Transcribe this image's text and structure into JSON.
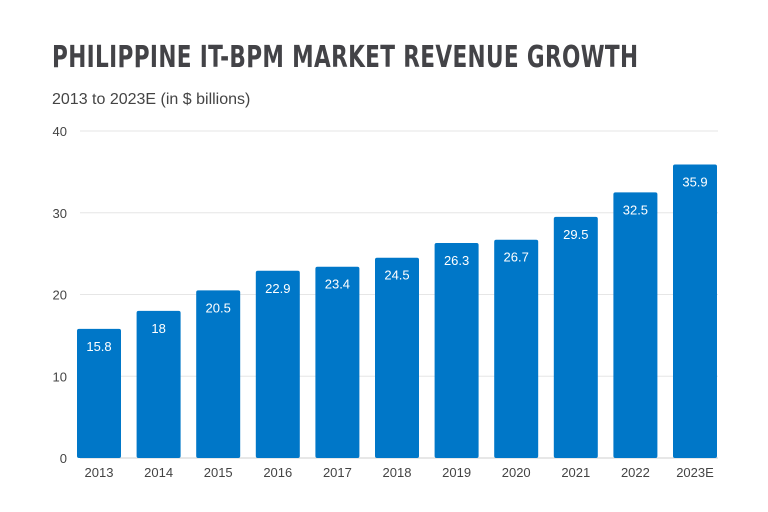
{
  "chart_data": {
    "type": "bar",
    "title": "PHILIPPINE IT-BPM MARKET REVENUE GROWTH",
    "subtitle": "2013 to 2023E (in $ billions)",
    "categories": [
      "2013",
      "2014",
      "2015",
      "2016",
      "2017",
      "2018",
      "2019",
      "2020",
      "2021",
      "2022",
      "2023E"
    ],
    "values": [
      15.8,
      18,
      20.5,
      22.9,
      23.4,
      24.5,
      26.3,
      26.7,
      29.5,
      32.5,
      35.9
    ],
    "ylim": [
      0,
      40
    ],
    "yticks": [
      0,
      10,
      20,
      30,
      40
    ],
    "grid": true,
    "bar_color": "#0077C8",
    "xlabel": "",
    "ylabel": ""
  }
}
